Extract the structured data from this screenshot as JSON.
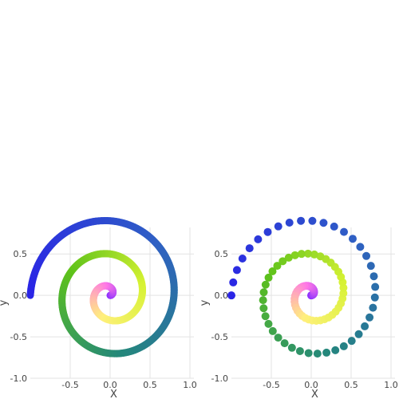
{
  "chart_data": [
    {
      "type": "line",
      "description": "Archimedean spiral drawn as a thick colour-gradient line",
      "curve": {
        "form": "r = t, x = t*cos(angle), y = t*sin(angle)",
        "t_range": [
          0,
          1
        ],
        "turns": 2.5,
        "start_angle_deg": 0
      },
      "colormap": [
        "#8a30ff",
        "#ff78e6",
        "#fff07c",
        "#d6f233",
        "#5ec21a",
        "#24887a",
        "#2f60c4",
        "#2a24e6"
      ],
      "xlabel": "X",
      "ylabel": "y",
      "xlim": [
        -1.0,
        1.05
      ],
      "ylim": [
        -1.0,
        0.82
      ],
      "xticks": [
        -0.5,
        0.0,
        0.5,
        1.0
      ],
      "xtick_labels": [
        "-0.5",
        "0.0",
        "0.5",
        "1.0"
      ],
      "yticks": [
        -1.0,
        -0.5,
        0.0,
        0.5
      ],
      "ytick_labels": [
        "-1.0",
        "-0.5",
        "0.0",
        "0.5"
      ],
      "grid": true
    },
    {
      "type": "scatter",
      "description": "Same spiral sampled as discrete colour-gradient markers",
      "curve": {
        "form": "r = t, x = t*cos(angle), y = t*sin(angle)",
        "t_range": [
          0,
          1
        ],
        "turns": 2.5,
        "start_angle_deg": 0,
        "points": 100
      },
      "colormap": [
        "#8a30ff",
        "#ff78e6",
        "#fff07c",
        "#d6f233",
        "#5ec21a",
        "#24887a",
        "#2f60c4",
        "#2a24e6"
      ],
      "xlabel": "X",
      "ylabel": "y",
      "xlim": [
        -1.0,
        1.05
      ],
      "ylim": [
        -1.0,
        0.82
      ],
      "xticks": [
        -0.5,
        0.0,
        0.5,
        1.0
      ],
      "xtick_labels": [
        "-0.5",
        "0.0",
        "0.5",
        "1.0"
      ],
      "yticks": [
        -1.0,
        -0.5,
        0.0,
        0.5
      ],
      "ytick_labels": [
        "-1.0",
        "-0.5",
        "0.0",
        "0.5"
      ],
      "grid": true
    }
  ]
}
